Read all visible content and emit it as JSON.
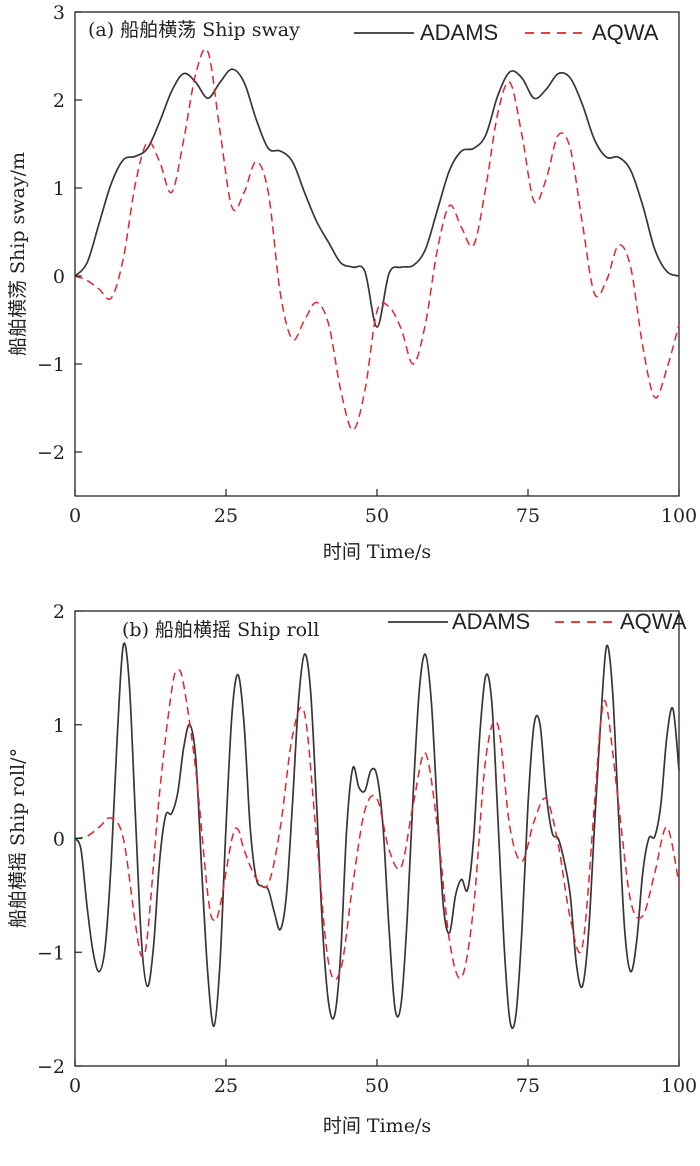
{
  "chart_data": [
    {
      "type": "line",
      "title": "(a) 船舶横荡 Ship sway",
      "xlabel": "时间 Time/s",
      "ylabel": "船舶横荡 Ship sway/m",
      "xlim": [
        0,
        100
      ],
      "ylim": [
        -2.5,
        3
      ],
      "xticks": [
        0,
        25,
        50,
        75,
        100
      ],
      "yticks": [
        -2,
        -1,
        0,
        1,
        2,
        3
      ],
      "grid": false,
      "legend_position": "top-right",
      "series": [
        {
          "name": "ADAMS",
          "color": "#3a3436",
          "dash": "solid",
          "x": [
            0,
            2,
            4,
            6,
            8,
            10,
            12,
            14,
            16,
            18,
            20,
            22,
            24,
            26,
            28,
            30,
            32,
            34,
            36,
            38,
            40,
            42,
            44,
            46,
            48,
            50,
            52,
            54,
            56,
            58,
            60,
            62,
            64,
            66,
            68,
            70,
            72,
            74,
            76,
            78,
            80,
            82,
            84,
            86,
            88,
            90,
            92,
            94,
            96,
            98,
            100
          ],
          "y": [
            0,
            0.15,
            0.6,
            1.05,
            1.32,
            1.36,
            1.45,
            1.75,
            2.1,
            2.3,
            2.2,
            2.02,
            2.2,
            2.35,
            2.2,
            1.78,
            1.45,
            1.42,
            1.3,
            0.95,
            0.62,
            0.38,
            0.15,
            0.1,
            0.05,
            -0.58,
            0.03,
            0.1,
            0.12,
            0.3,
            0.75,
            1.2,
            1.42,
            1.45,
            1.6,
            2.05,
            2.32,
            2.25,
            2.02,
            2.12,
            2.3,
            2.25,
            1.95,
            1.55,
            1.35,
            1.35,
            1.2,
            0.8,
            0.3,
            0.05,
            0
          ]
        },
        {
          "name": "AQWA",
          "color": "#e0262e",
          "dash": "dashed",
          "x": [
            0,
            2,
            4,
            6,
            8,
            10,
            12,
            14,
            16,
            18,
            20,
            22,
            24,
            26,
            28,
            30,
            32,
            34,
            36,
            38,
            40,
            42,
            44,
            46,
            48,
            50,
            52,
            54,
            56,
            58,
            60,
            62,
            64,
            66,
            68,
            70,
            72,
            74,
            76,
            78,
            80,
            82,
            84,
            86,
            88,
            90,
            92,
            94,
            96,
            98,
            100
          ],
          "y": [
            0,
            -0.05,
            -0.15,
            -0.25,
            0.2,
            1.05,
            1.52,
            1.3,
            0.95,
            1.55,
            2.3,
            2.55,
            1.65,
            0.78,
            0.95,
            1.3,
            0.95,
            -0.2,
            -0.72,
            -0.5,
            -0.3,
            -0.55,
            -1.3,
            -1.75,
            -1.3,
            -0.4,
            -0.35,
            -0.6,
            -1.0,
            -0.55,
            0.3,
            0.8,
            0.55,
            0.35,
            1.0,
            1.85,
            2.2,
            1.6,
            0.85,
            1.1,
            1.6,
            1.45,
            0.6,
            -0.2,
            -0.05,
            0.35,
            0.1,
            -0.8,
            -1.38,
            -1.05,
            -0.55
          ]
        }
      ]
    },
    {
      "type": "line",
      "title": "(b) 船舶横摇 Ship roll",
      "xlabel": "时间 Time/s",
      "ylabel": "船舶横摇 Ship roll/°",
      "xlim": [
        0,
        100
      ],
      "ylim": [
        -2,
        2
      ],
      "xticks": [
        0,
        25,
        50,
        75,
        100
      ],
      "yticks": [
        -2,
        -1,
        0,
        1,
        2
      ],
      "grid": false,
      "legend_position": "top-right",
      "series": [
        {
          "name": "ADAMS",
          "color": "#3a3436",
          "dash": "solid",
          "x": [
            0,
            1,
            2,
            3,
            4,
            5,
            6,
            7,
            8,
            9,
            10,
            11,
            12,
            13,
            14,
            15,
            16,
            17,
            18,
            19,
            20,
            21,
            22,
            23,
            24,
            25,
            26,
            27,
            28,
            29,
            30,
            31,
            32,
            33,
            34,
            35,
            36,
            37,
            38,
            39,
            40,
            41,
            42,
            43,
            44,
            45,
            46,
            47,
            48,
            49,
            50,
            51,
            52,
            53,
            54,
            55,
            56,
            57,
            58,
            59,
            60,
            61,
            62,
            63,
            64,
            65,
            66,
            67,
            68,
            69,
            70,
            71,
            72,
            73,
            74,
            75,
            76,
            77,
            78,
            79,
            80,
            81,
            82,
            83,
            84,
            85,
            86,
            87,
            88,
            89,
            90,
            91,
            92,
            93,
            94,
            95,
            96,
            97,
            98,
            99,
            100
          ],
          "y": [
            0,
            -0.1,
            -0.6,
            -1.0,
            -1.17,
            -0.95,
            -0.2,
            0.9,
            1.7,
            1.35,
            0.2,
            -0.9,
            -1.3,
            -0.95,
            -0.2,
            0.2,
            0.22,
            0.4,
            0.8,
            1.0,
            0.7,
            -0.3,
            -1.2,
            -1.65,
            -1.1,
            0.1,
            1.1,
            1.44,
            1.0,
            0.1,
            -0.35,
            -0.42,
            -0.45,
            -0.65,
            -0.8,
            -0.5,
            0.3,
            1.2,
            1.62,
            1.3,
            0.3,
            -0.8,
            -1.45,
            -1.55,
            -1.0,
            0.1,
            0.62,
            0.45,
            0.42,
            0.6,
            0.55,
            0.1,
            -0.8,
            -1.5,
            -1.45,
            -0.7,
            0.4,
            1.3,
            1.62,
            1.2,
            0.25,
            -0.6,
            -0.83,
            -0.5,
            -0.36,
            -0.45,
            0.0,
            0.9,
            1.43,
            1.2,
            0.2,
            -0.9,
            -1.6,
            -1.55,
            -0.8,
            0.3,
            1.0,
            1.0,
            0.4,
            0.05,
            0.0,
            -0.2,
            -0.5,
            -1.1,
            -1.3,
            -0.85,
            0.1,
            1.0,
            1.69,
            1.3,
            0.2,
            -0.8,
            -1.17,
            -0.9,
            -0.3,
            0.0,
            0.02,
            0.3,
            0.9,
            1.14,
            0.6
          ]
        },
        {
          "name": "AQWA",
          "color": "#e0262e",
          "dash": "dashed",
          "x": [
            0,
            2,
            4,
            6,
            8,
            10,
            11,
            12,
            14,
            16,
            17,
            18,
            20,
            22,
            23,
            24,
            26,
            27,
            28,
            30,
            32,
            34,
            36,
            38,
            40,
            42,
            44,
            46,
            48,
            50,
            52,
            54,
            56,
            58,
            60,
            62,
            64,
            66,
            68,
            70,
            72,
            74,
            76,
            78,
            80,
            82,
            84,
            86,
            87,
            88,
            90,
            92,
            94,
            96,
            98,
            100
          ],
          "y": [
            0,
            0.02,
            0.1,
            0.18,
            0.0,
            -0.75,
            -1.03,
            -0.85,
            0.4,
            1.3,
            1.48,
            1.35,
            0.6,
            -0.5,
            -0.72,
            -0.6,
            0.0,
            0.08,
            -0.1,
            -0.35,
            -0.4,
            0.1,
            0.9,
            1.1,
            0.0,
            -1.1,
            -1.15,
            -0.4,
            0.25,
            0.35,
            -0.1,
            -0.25,
            0.3,
            0.75,
            0.1,
            -0.9,
            -1.22,
            -0.6,
            0.7,
            1.0,
            0.1,
            -0.2,
            0.15,
            0.35,
            -0.05,
            -0.7,
            -0.95,
            0.3,
            1.0,
            1.17,
            0.3,
            -0.55,
            -0.68,
            -0.3,
            0.1,
            -0.4
          ]
        }
      ]
    }
  ]
}
